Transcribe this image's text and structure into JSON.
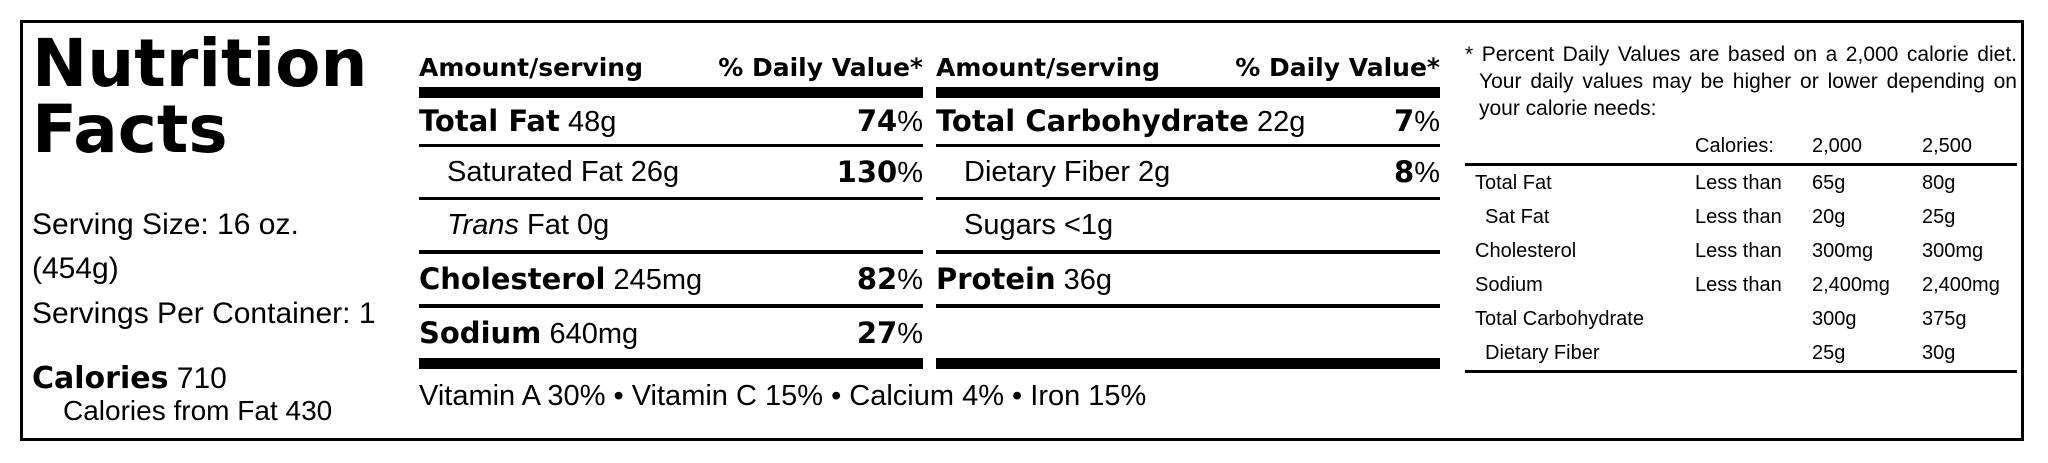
{
  "title_line1": "Nutrition",
  "title_line2": "Facts",
  "serving_size_line1": "Serving Size: 16 oz.",
  "serving_size_line2": "(454g)",
  "servings_per_container": "Servings Per Container: 1",
  "calories_label": "Calories",
  "calories_value": "710",
  "calories_from_fat": "Calories from Fat 430",
  "header": {
    "amount": "Amount/serving",
    "dv": "% Daily Value*"
  },
  "left_col": [
    {
      "bold": "Total Fat",
      "value": "48g",
      "pct": "74"
    },
    {
      "name": "Saturated Fat 26g",
      "pct": "130"
    },
    {
      "italic": "Trans",
      "rest": " Fat 0g"
    },
    {
      "bold": "Cholesterol",
      "value": "245mg",
      "pct": "82"
    },
    {
      "bold": "Sodium",
      "value": "640mg",
      "pct": "27"
    }
  ],
  "right_col": [
    {
      "bold": "Total Carbohydrate",
      "value": "22g",
      "pct": "7"
    },
    {
      "name": "Dietary Fiber 2g",
      "pct": "8"
    },
    {
      "name": "Sugars <1g"
    },
    {
      "bold": "Protein",
      "value": "36g"
    }
  ],
  "pct_sign": "%",
  "vitamins": "Vitamin A 30% • Vitamin C 15% • Calcium 4% • Iron 15%",
  "footnote": "* Percent Daily Values are based on a 2,000 calorie diet. Your daily values may be higher or lower depending on your calorie needs:",
  "dv_header": {
    "calories": "Calories:",
    "c2000": "2,000",
    "c2500": "2,500"
  },
  "dv_rows": [
    {
      "name": "Total Fat",
      "cond": "Less than",
      "a": "65g",
      "b": "80g"
    },
    {
      "name": "Sat Fat",
      "cond": "Less than",
      "a": "20g",
      "b": "25g"
    },
    {
      "name": "Cholesterol",
      "cond": "Less than",
      "a": "300mg",
      "b": "300mg"
    },
    {
      "name": "Sodium",
      "cond": "Less than",
      "a": "2,400mg",
      "b": "2,400mg"
    },
    {
      "name": "Total Carbohydrate",
      "cond": "",
      "a": "300g",
      "b": "375g"
    },
    {
      "name": "Dietary Fiber",
      "cond": "",
      "a": "25g",
      "b": "30g"
    }
  ]
}
